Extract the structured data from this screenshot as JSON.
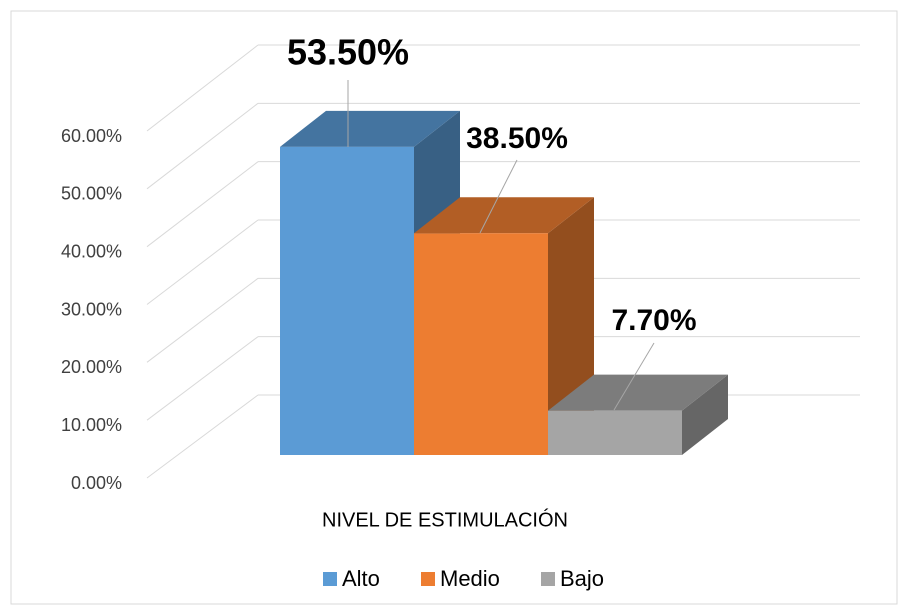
{
  "chart_data": {
    "type": "bar3d",
    "categories": [
      "NIVEL DE ESTIMULACIÓN"
    ],
    "series": [
      {
        "name": "Alto",
        "color": "#5b9bd5",
        "values": [
          53.5
        ],
        "value_labels": [
          "53.50%"
        ]
      },
      {
        "name": "Medio",
        "color": "#ed7d31",
        "values": [
          38.5
        ],
        "value_labels": [
          "38.50%"
        ]
      },
      {
        "name": "Bajo",
        "color": "#a5a5a5",
        "values": [
          7.7
        ],
        "value_labels": [
          "7.70%"
        ]
      }
    ],
    "ylim": [
      0,
      60
    ],
    "yticks": [
      {
        "value": 0,
        "label": "0.00%"
      },
      {
        "value": 10,
        "label": "10.00%"
      },
      {
        "value": 20,
        "label": "20.00%"
      },
      {
        "value": 30,
        "label": "30.00%"
      },
      {
        "value": 40,
        "label": "40.00%"
      },
      {
        "value": 50,
        "label": "50.00%"
      },
      {
        "value": 60,
        "label": "60.00%"
      }
    ],
    "grid": true,
    "legend": "bottom"
  }
}
